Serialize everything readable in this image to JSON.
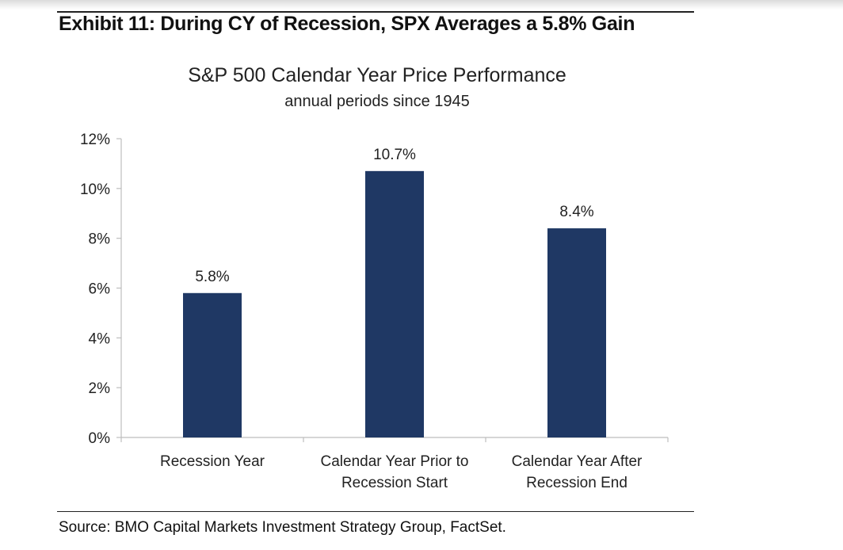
{
  "exhibit_title": "Exhibit 11: During CY of Recession, SPX Averages a 5.8% Gain",
  "source": "Source: BMO Capital Markets Investment Strategy Group, FactSet.",
  "colors": {
    "bar": "#1f3864",
    "axis": "#bdbdbd",
    "rule": "#222222"
  },
  "chart_data": {
    "type": "bar",
    "title": "S&P 500 Calendar Year Price Performance",
    "subtitle": "annual periods since 1945",
    "categories": [
      [
        "Recession Year"
      ],
      [
        "Calendar Year Prior to",
        "Recession Start"
      ],
      [
        "Calendar Year After",
        "Recession End"
      ]
    ],
    "values": [
      5.8,
      10.7,
      8.4
    ],
    "data_labels": [
      "5.8%",
      "10.7%",
      "8.4%"
    ],
    "yticks": [
      0,
      2,
      4,
      6,
      8,
      10,
      12
    ],
    "ytick_labels": [
      "0%",
      "2%",
      "4%",
      "6%",
      "8%",
      "10%",
      "12%"
    ],
    "ylim": [
      0,
      12
    ],
    "grid": false,
    "legend": "none"
  }
}
